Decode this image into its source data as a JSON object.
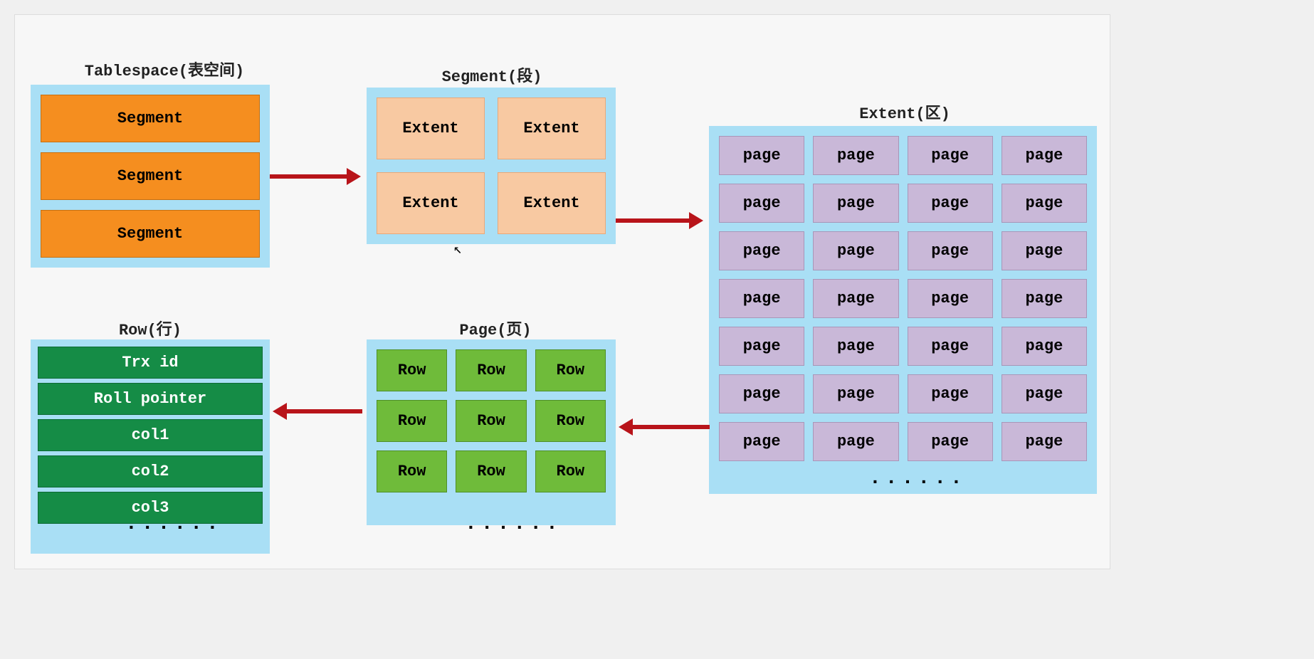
{
  "background_color": "#f0f0f0",
  "canvas_color": "#f7f7f7",
  "panel_color": "#a9dff5",
  "arrow_color": "#b8141a",
  "colors": {
    "segment_fill": "#f58e1f",
    "segment_border": "#c86f0e",
    "extent_fill": "#f8c9a2",
    "extent_border": "#e9a879",
    "page_fill": "#c9b8d8",
    "page_border": "#a896b8",
    "row_fill": "#6fbb3a",
    "row_border": "#4f8f27",
    "field_fill": "#158c46",
    "field_border": "#0d6a34"
  },
  "font_family": "Courier New, Consolas, monospace",
  "title_fontsize": 22,
  "item_fontsize": 22,
  "tablespace": {
    "title": "Tablespace(表空间)",
    "items": [
      "Segment",
      "Segment",
      "Segment"
    ]
  },
  "segment": {
    "title": "Segment(段)",
    "items": [
      "Extent",
      "Extent",
      "Extent",
      "Extent"
    ],
    "grid_cols": 2
  },
  "extent": {
    "title": "Extent(区)",
    "grid_cols": 4,
    "grid_rows": 7,
    "item_label": "page",
    "ellipsis": "......"
  },
  "page": {
    "title": "Page(页)",
    "grid_cols": 3,
    "grid_rows": 3,
    "item_label": "Row",
    "ellipsis": "......"
  },
  "row": {
    "title": "Row(行)",
    "fields": [
      "Trx id",
      "Roll pointer",
      "col1",
      "col2",
      "col3"
    ],
    "ellipsis": "......"
  },
  "arrows": [
    {
      "from": "tablespace",
      "to": "segment",
      "direction": "right"
    },
    {
      "from": "segment",
      "to": "extent",
      "direction": "right"
    },
    {
      "from": "extent",
      "to": "page",
      "direction": "left"
    },
    {
      "from": "page",
      "to": "row",
      "direction": "left"
    }
  ]
}
